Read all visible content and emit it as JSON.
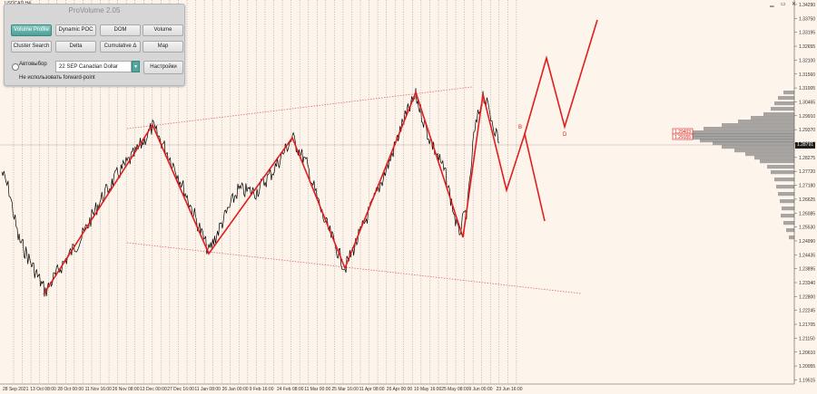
{
  "window": {
    "symbol": "USDCAD,H4",
    "controls": {
      "minimize": "▁",
      "maximize": "▭",
      "close": "✕"
    }
  },
  "panel": {
    "title": "ProVolume 2.05",
    "buttons": [
      {
        "label": "Volume Profile",
        "active": true
      },
      {
        "label": "Dynamic POC",
        "active": false
      },
      {
        "label": "DOM",
        "active": false
      },
      {
        "label": "Volume",
        "active": false
      },
      {
        "label": "Cluster Search",
        "active": false
      },
      {
        "label": "Delta",
        "active": false
      },
      {
        "label": "Cumulative Δ",
        "active": false
      },
      {
        "label": "Map",
        "active": false
      }
    ],
    "auto_select_label": "Автовыбор",
    "instrument_value": "22 SEP Canadian Dollar",
    "settings_label": "Настройки",
    "forward_point_note": "Не использовать forward-point"
  },
  "axis": {
    "y_ticks": [
      "1.34290",
      "1.33750",
      "1.33195",
      "1.32655",
      "1.32100",
      "1.31560",
      "1.31005",
      "1.30465",
      "1.29910",
      "1.29370",
      "1.28815",
      "1.28275",
      "1.27720",
      "1.27180",
      "1.26625",
      "1.26085",
      "1.25530",
      "1.24990",
      "1.24435",
      "1.23895",
      "1.23340",
      "1.22800",
      "1.22245",
      "1.21705",
      "1.21150",
      "1.20610",
      "1.20055",
      "1.19515"
    ],
    "x_ticks": [
      "28 Sep 2021",
      "13 Oct 08:00",
      "28 Oct 00:00",
      "11 Nov 16:00",
      "26 Nov 08:00",
      "13 Dec 00:00",
      "27 Dec 16:00",
      "11 Jan 08:00",
      "26 Jan 00:00",
      "9 Feb 16:00",
      "24 Feb 08:00",
      "11 Mar 00:00",
      "25 Mar 16:00",
      "11 Apr 08:00",
      "26 Apr 00:00",
      "10 May 16:00",
      "25 May 08:00",
      "9 Jun 00:00",
      "23 Jun 16:00"
    ],
    "current_price": "1.28791"
  },
  "profile_labels": [
    "1.29403",
    "1.29155"
  ],
  "wave_labels": [
    "B",
    "D"
  ],
  "colors": {
    "background": "#fdf4ec",
    "price_line": "#000000",
    "wave": "#e01e1e",
    "channel": "#e06a6a",
    "profile": "#8a8a8a",
    "grid_vertical": "#777777",
    "button_active": "#4e9f98"
  }
}
